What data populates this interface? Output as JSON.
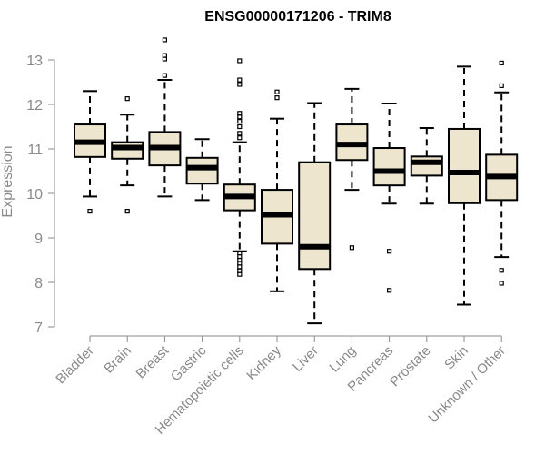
{
  "chart_data": {
    "type": "boxplot",
    "title": "ENSG00000171206 - TRIM8",
    "xlabel": "",
    "ylabel": "Expression",
    "ylim": [
      7,
      13
    ],
    "yticks": [
      7,
      8,
      9,
      10,
      11,
      12,
      13
    ],
    "box_fill": "#ede5cd",
    "categories": [
      "Bladder",
      "Brain",
      "Breast",
      "Gastric",
      "Hematopoietic cells",
      "Kidney",
      "Liver",
      "Lung",
      "Pancreas",
      "Prostate",
      "Skin",
      "Unknown / Other"
    ],
    "boxes": [
      {
        "category": "Bladder",
        "whisker_low": 9.93,
        "q1": 10.82,
        "median": 11.15,
        "q3": 11.55,
        "whisker_high": 12.3,
        "outliers": [
          9.6
        ]
      },
      {
        "category": "Brain",
        "whisker_low": 10.18,
        "q1": 10.78,
        "median": 11.03,
        "q3": 11.15,
        "whisker_high": 11.77,
        "outliers": [
          12.13,
          9.6
        ]
      },
      {
        "category": "Breast",
        "whisker_low": 9.93,
        "q1": 10.63,
        "median": 11.03,
        "q3": 11.38,
        "whisker_high": 12.55,
        "outliers": [
          12.65,
          13.02,
          13.1,
          13.45
        ]
      },
      {
        "category": "Gastric",
        "whisker_low": 9.85,
        "q1": 10.22,
        "median": 10.58,
        "q3": 10.8,
        "whisker_high": 11.22,
        "outliers": []
      },
      {
        "category": "Hematopoietic cells",
        "whisker_low": 8.7,
        "q1": 9.62,
        "median": 9.93,
        "q3": 10.2,
        "whisker_high": 11.15,
        "outliers": [
          8.18,
          8.26,
          8.35,
          8.43,
          8.5,
          8.58,
          8.66,
          11.25,
          11.35,
          11.5,
          11.62,
          11.72,
          11.8,
          12.45,
          12.55,
          12.98
        ]
      },
      {
        "category": "Kidney",
        "whisker_low": 7.8,
        "q1": 8.87,
        "median": 9.52,
        "q3": 10.08,
        "whisker_high": 11.68,
        "outliers": [
          12.15,
          12.28
        ]
      },
      {
        "category": "Liver",
        "whisker_low": 7.08,
        "q1": 8.3,
        "median": 8.8,
        "q3": 10.7,
        "whisker_high": 12.03,
        "outliers": []
      },
      {
        "category": "Lung",
        "whisker_low": 10.08,
        "q1": 10.75,
        "median": 11.1,
        "q3": 11.55,
        "whisker_high": 12.35,
        "outliers": [
          8.78
        ]
      },
      {
        "category": "Pancreas",
        "whisker_low": 9.77,
        "q1": 10.18,
        "median": 10.5,
        "q3": 11.02,
        "whisker_high": 12.02,
        "outliers": [
          8.7,
          7.82
        ]
      },
      {
        "category": "Prostate",
        "whisker_low": 9.77,
        "q1": 10.4,
        "median": 10.7,
        "q3": 10.83,
        "whisker_high": 11.47,
        "outliers": []
      },
      {
        "category": "Skin",
        "whisker_low": 7.5,
        "q1": 9.78,
        "median": 10.47,
        "q3": 11.45,
        "whisker_high": 12.85,
        "outliers": []
      },
      {
        "category": "Unknown / Other",
        "whisker_low": 8.57,
        "q1": 9.85,
        "median": 10.38,
        "q3": 10.87,
        "whisker_high": 12.27,
        "outliers": [
          12.42,
          12.93,
          8.27,
          7.98
        ]
      }
    ]
  }
}
